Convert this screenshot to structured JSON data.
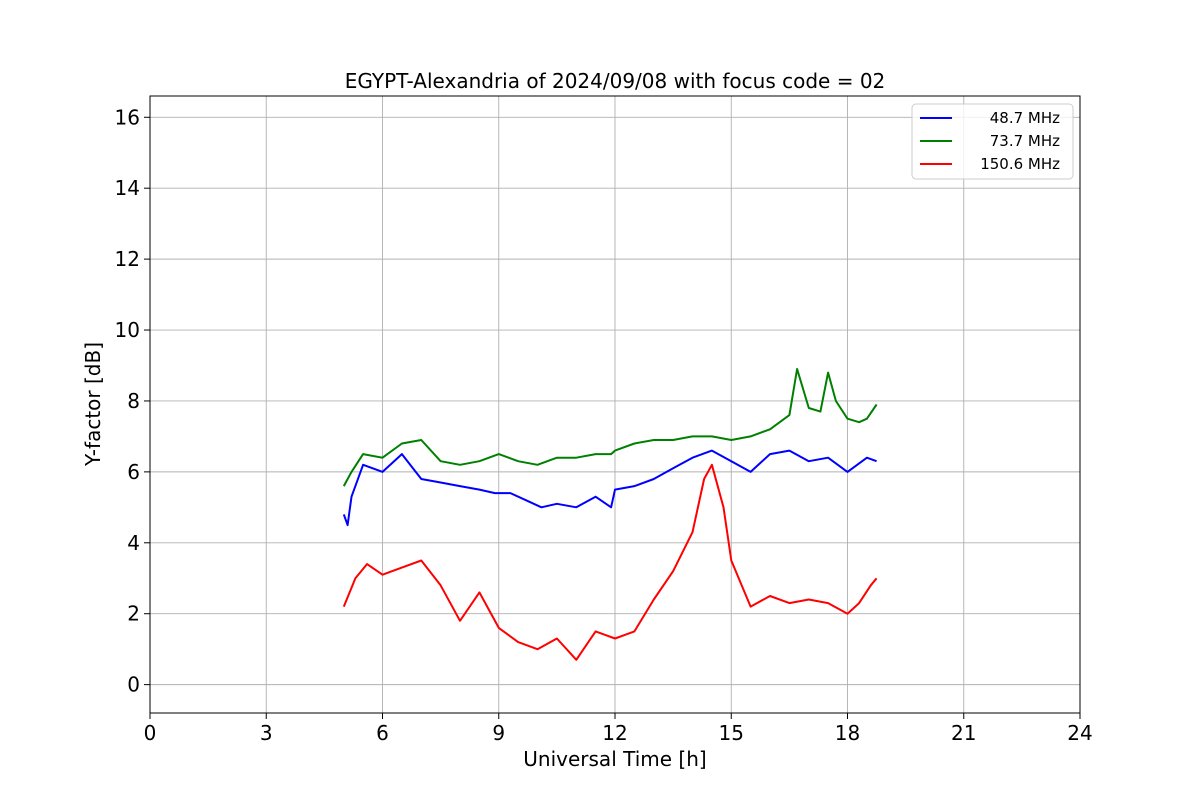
{
  "chart_data": {
    "type": "line",
    "title": "EGYPT-Alexandria of 2024/09/08 with focus code = 02",
    "xlabel": "Universal Time [h]",
    "ylabel": "Y-factor [dB]",
    "xlim": [
      0,
      24
    ],
    "ylim": [
      -0.8,
      16.6
    ],
    "xticks": [
      "0",
      "3",
      "6",
      "9",
      "12",
      "15",
      "18",
      "21",
      "24"
    ],
    "yticks": [
      "0",
      "2",
      "4",
      "6",
      "8",
      "10",
      "12",
      "14",
      "16"
    ],
    "grid": true,
    "legend_position": "top-right",
    "series": [
      {
        "name": "48.7 MHz",
        "color": "#0000ff",
        "x": [
          5.0,
          5.1,
          5.2,
          5.5,
          6.0,
          6.5,
          7.0,
          7.5,
          8.0,
          8.5,
          8.9,
          9.3,
          9.7,
          10.1,
          10.5,
          11.0,
          11.5,
          11.9,
          12.0,
          12.5,
          13.0,
          13.5,
          14.0,
          14.5,
          15.0,
          15.5,
          16.0,
          16.5,
          17.0,
          17.5,
          18.0,
          18.5,
          18.75
        ],
        "y": [
          4.8,
          4.5,
          5.3,
          6.2,
          6.0,
          6.5,
          5.8,
          5.7,
          5.6,
          5.5,
          5.4,
          5.4,
          5.2,
          5.0,
          5.1,
          5.0,
          5.3,
          5.0,
          5.5,
          5.6,
          5.8,
          6.1,
          6.4,
          6.6,
          6.3,
          6.0,
          6.5,
          6.6,
          6.3,
          6.4,
          6.0,
          6.4,
          6.3
        ]
      },
      {
        "name": "73.7 MHz",
        "color": "#008000",
        "x": [
          5.0,
          5.2,
          5.5,
          6.0,
          6.5,
          7.0,
          7.5,
          8.0,
          8.5,
          9.0,
          9.5,
          10.0,
          10.5,
          11.0,
          11.5,
          11.9,
          12.0,
          12.5,
          13.0,
          13.5,
          14.0,
          14.5,
          15.0,
          15.5,
          16.0,
          16.5,
          16.7,
          17.0,
          17.3,
          17.5,
          17.7,
          18.0,
          18.3,
          18.5,
          18.75
        ],
        "y": [
          5.6,
          6.0,
          6.5,
          6.4,
          6.8,
          6.9,
          6.3,
          6.2,
          6.3,
          6.5,
          6.3,
          6.2,
          6.4,
          6.4,
          6.5,
          6.5,
          6.6,
          6.8,
          6.9,
          6.9,
          7.0,
          7.0,
          6.9,
          7.0,
          7.2,
          7.6,
          8.9,
          7.8,
          7.7,
          8.8,
          8.0,
          7.5,
          7.4,
          7.5,
          7.9
        ]
      },
      {
        "name": "150.6 MHz",
        "color": "#ff0000",
        "x": [
          5.0,
          5.3,
          5.6,
          6.0,
          6.5,
          7.0,
          7.5,
          8.0,
          8.5,
          9.0,
          9.5,
          10.0,
          10.5,
          11.0,
          11.5,
          12.0,
          12.5,
          13.0,
          13.5,
          14.0,
          14.3,
          14.5,
          14.8,
          15.0,
          15.5,
          16.0,
          16.5,
          17.0,
          17.5,
          18.0,
          18.3,
          18.6,
          18.75
        ],
        "y": [
          2.2,
          3.0,
          3.4,
          3.1,
          3.3,
          3.5,
          2.8,
          1.8,
          2.6,
          1.6,
          1.2,
          1.0,
          1.3,
          0.7,
          1.5,
          1.3,
          1.5,
          2.4,
          3.2,
          4.3,
          5.8,
          6.2,
          5.0,
          3.5,
          2.2,
          2.5,
          2.3,
          2.4,
          2.3,
          2.0,
          2.3,
          2.8,
          3.0
        ]
      }
    ]
  }
}
